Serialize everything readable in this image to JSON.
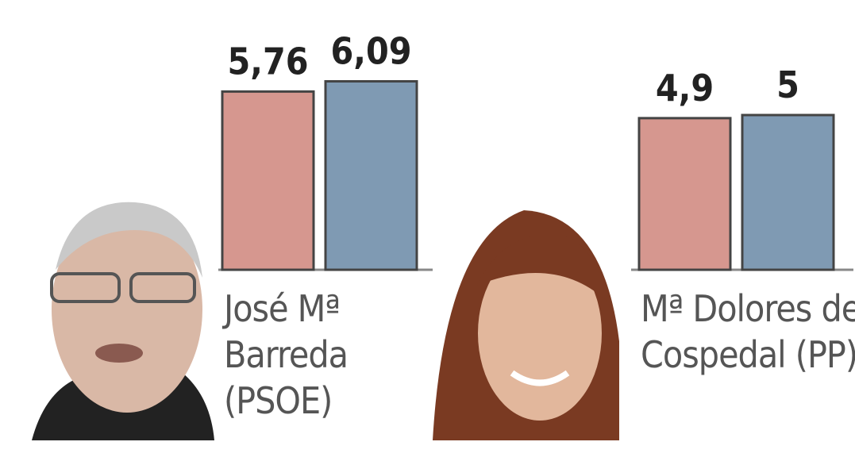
{
  "chart_data": {
    "type": "bar",
    "categories": [
      "José Mª Barreda (PSOE)",
      "Mª Dolores de Cospedal (PP)"
    ],
    "series": [
      {
        "color": "#d6978f",
        "values": [
          5.76,
          4.9
        ],
        "value_labels": [
          "5,76",
          "4,9"
        ]
      },
      {
        "color": "#7f9ab3",
        "values": [
          6.09,
          5
        ],
        "value_labels": [
          "6,09",
          "5"
        ]
      }
    ]
  }
}
